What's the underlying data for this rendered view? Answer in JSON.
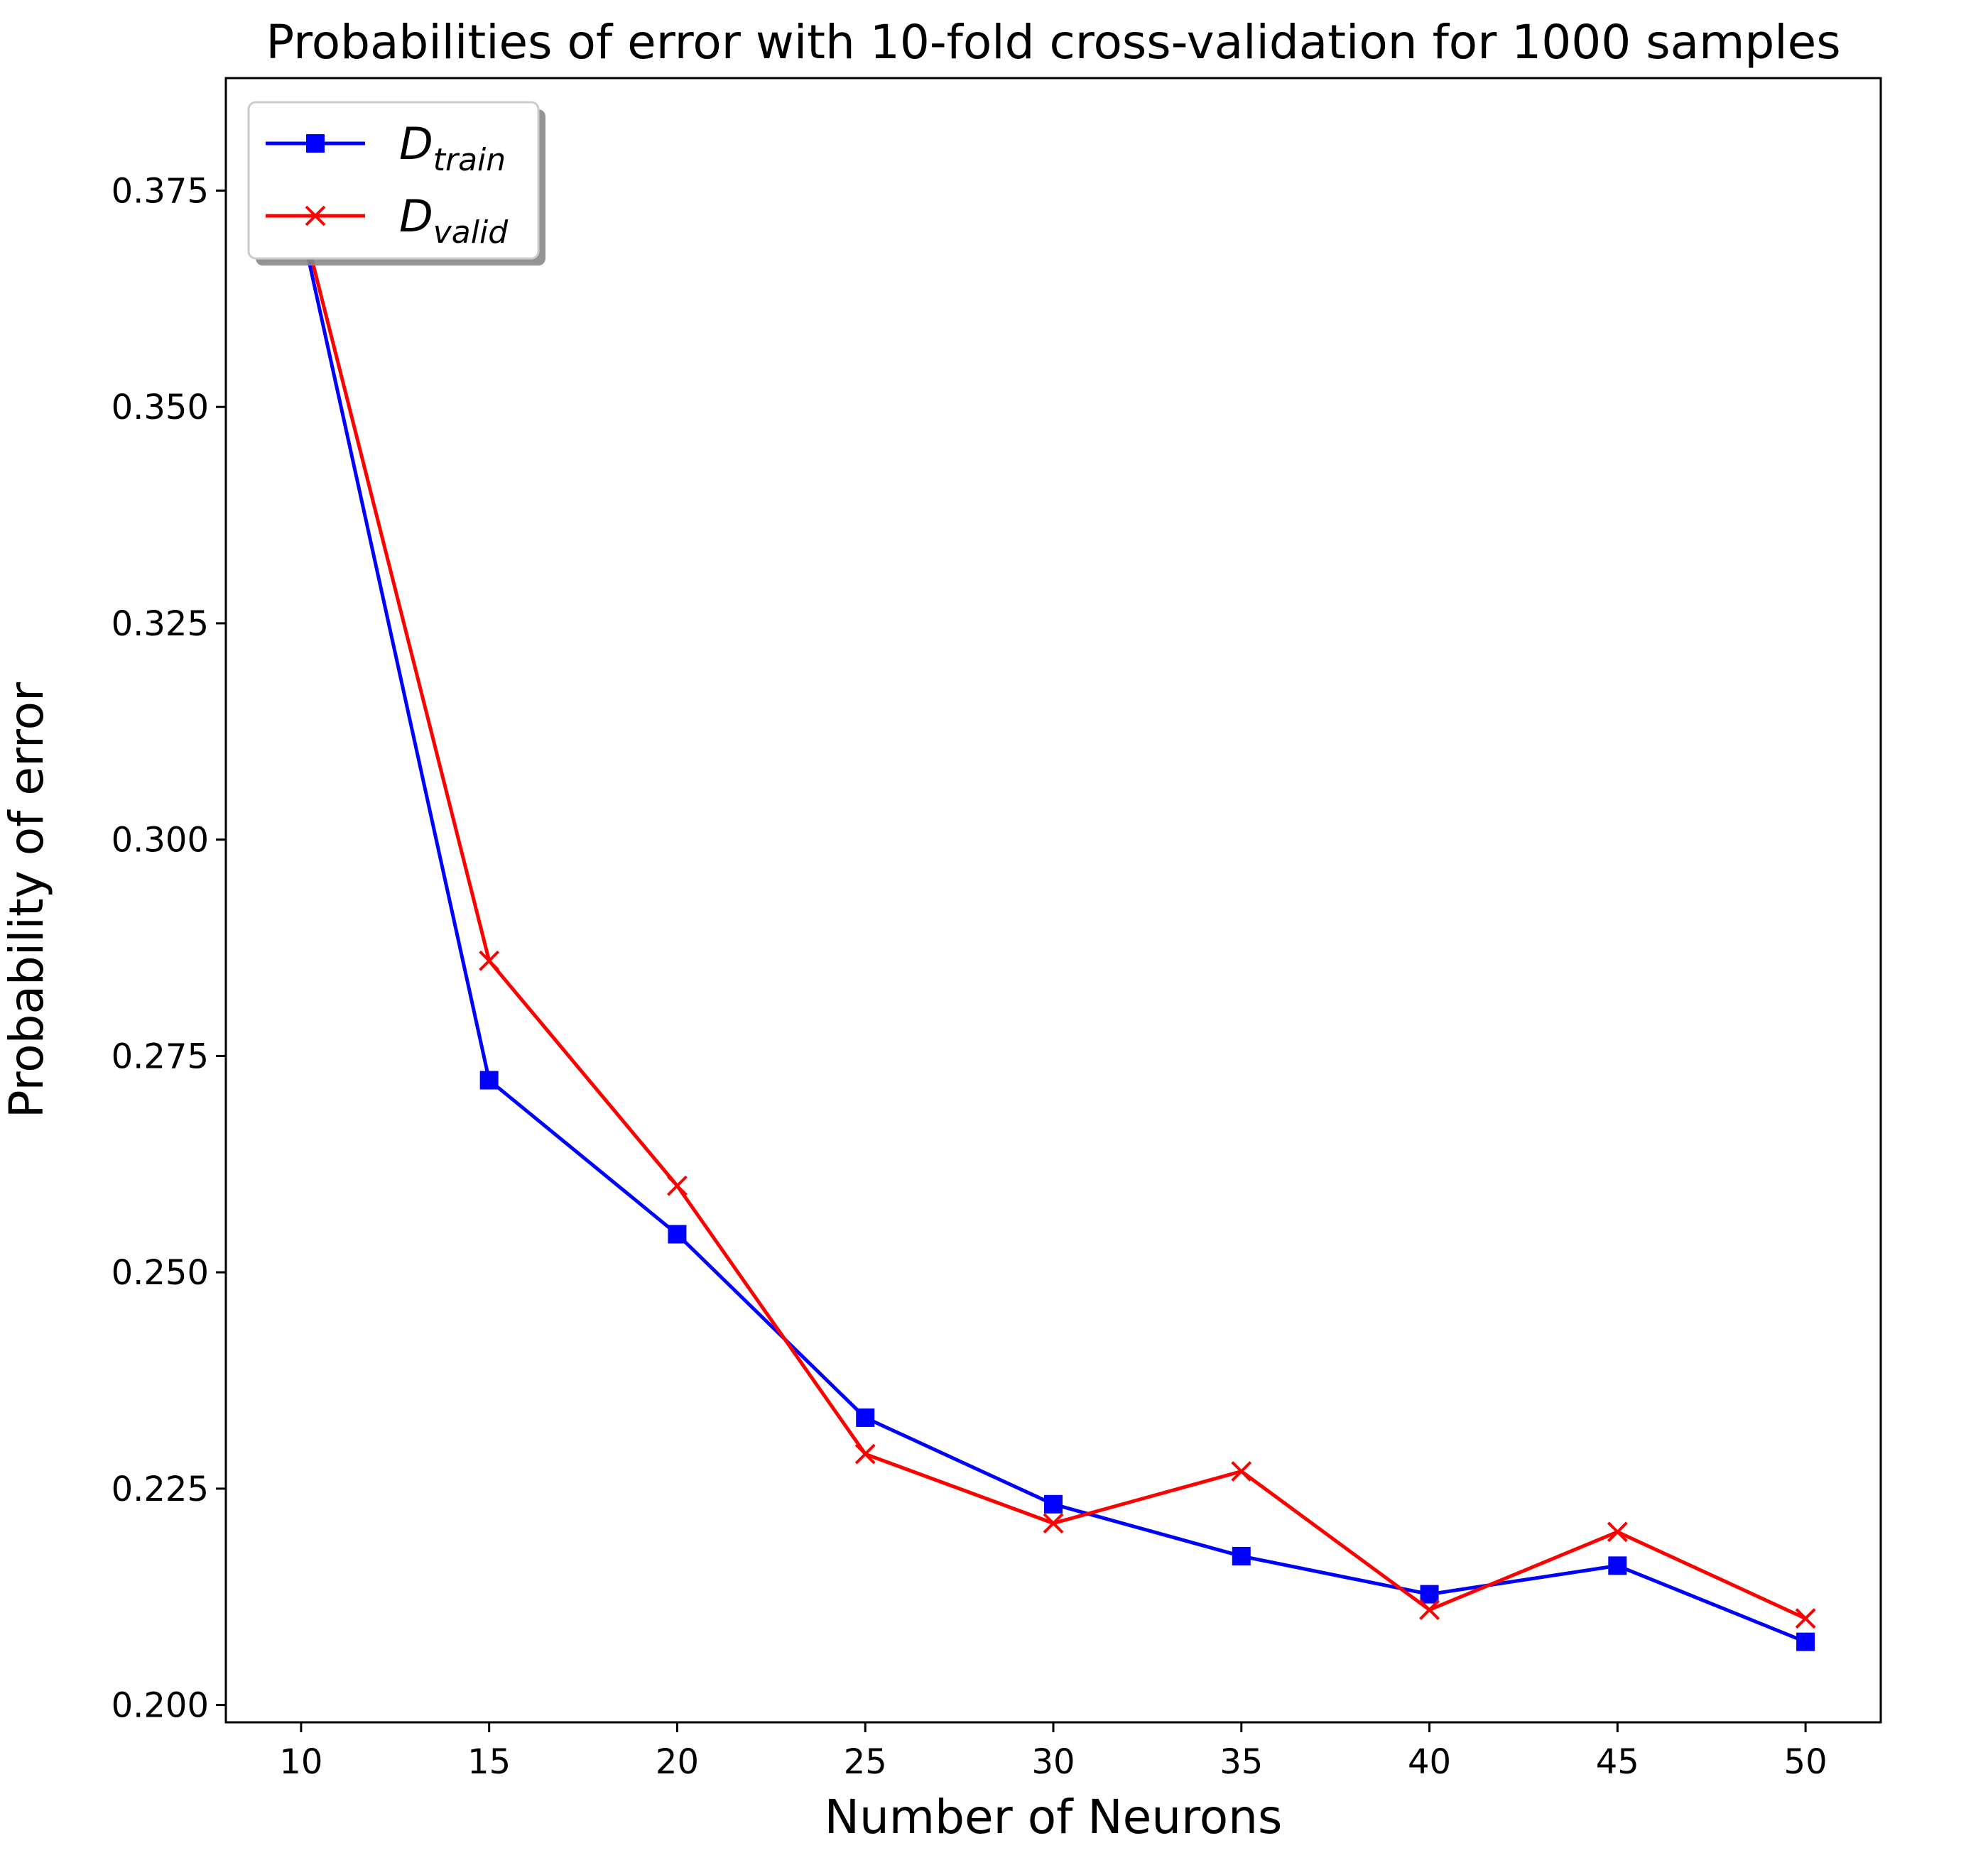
{
  "chart_data": {
    "type": "line",
    "title": "Probabilities of error with 10-fold cross-validation for 1000 samples",
    "xlabel": "Number of Neurons",
    "ylabel": "Probability of error",
    "x": [
      10,
      15,
      20,
      25,
      30,
      35,
      40,
      45,
      50
    ],
    "xticks": [
      "10",
      "15",
      "20",
      "25",
      "30",
      "35",
      "40",
      "45",
      "50"
    ],
    "yticks": [
      "0.200",
      "0.225",
      "0.250",
      "0.275",
      "0.300",
      "0.325",
      "0.350",
      "0.375"
    ],
    "xlim": [
      8,
      52
    ],
    "ylim": [
      0.198,
      0.388
    ],
    "grid": false,
    "legend_position": "upper-left",
    "series": [
      {
        "name": "D_train",
        "legend_main": "D",
        "legend_sub": "train",
        "color": "#0000ff",
        "marker": "square",
        "values": [
          0.371,
          0.2722,
          0.2544,
          0.2332,
          0.2232,
          0.2172,
          0.2128,
          0.2161,
          0.2073
        ]
      },
      {
        "name": "D_valid",
        "legend_main": "D",
        "legend_sub": "valid",
        "color": "#ff0000",
        "marker": "x",
        "values": [
          0.372,
          0.286,
          0.26,
          0.229,
          0.221,
          0.227,
          0.211,
          0.22,
          0.21
        ]
      }
    ]
  }
}
